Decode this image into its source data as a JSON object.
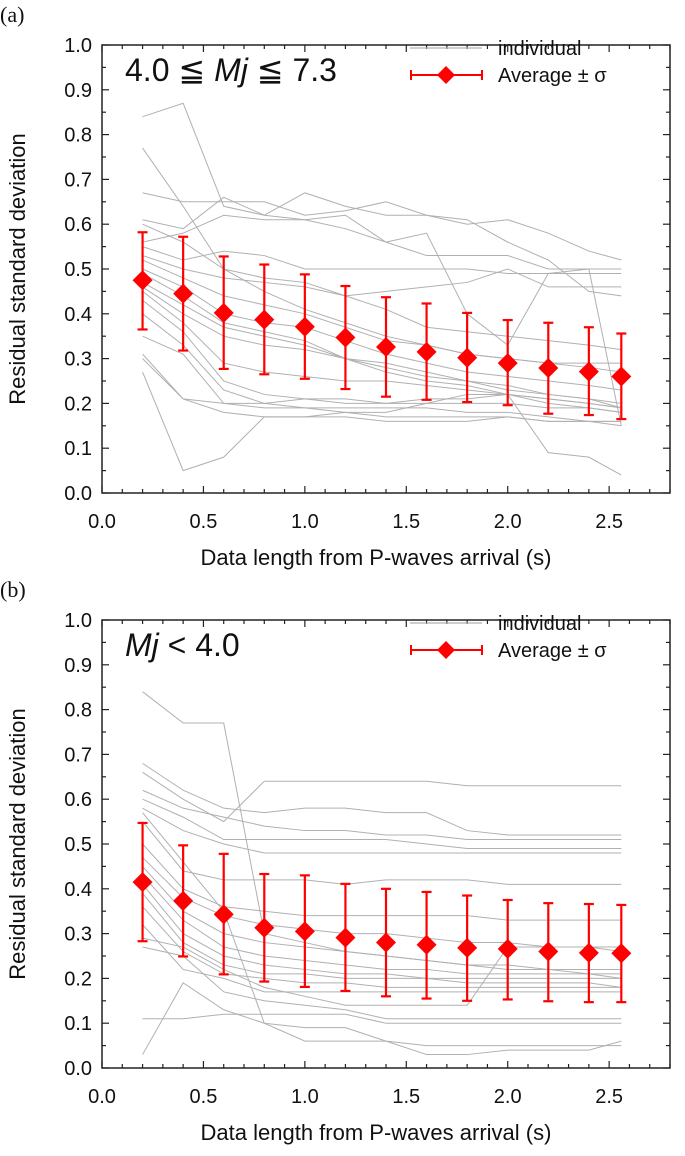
{
  "chart_data": [
    {
      "panel": "(a)",
      "type": "line",
      "annotation": "4.0 ≦ Mj ≦ 7.3",
      "annotation_parts": [
        "4.0 ≦ ",
        "Mj",
        " ≦ 7.3"
      ],
      "xlabel": "Data length from P-waves arrival (s)",
      "ylabel": "Residual standard deviation",
      "xlim": [
        0,
        2.8
      ],
      "ylim": [
        0,
        1.0
      ],
      "xticks": [
        "0.0",
        "0.5",
        "1.0",
        "1.5",
        "2.0",
        "2.5"
      ],
      "yticks": [
        "0.0",
        "0.1",
        "0.2",
        "0.3",
        "0.4",
        "0.5",
        "0.6",
        "0.7",
        "0.8",
        "0.9",
        "1.0"
      ],
      "legend": {
        "position": "top-right",
        "individual": "individual",
        "average": "Average ± σ"
      },
      "colors": {
        "individual": "#b0b0b0",
        "average": "#ff0000"
      },
      "x": [
        0.2,
        0.4,
        0.6,
        0.8,
        1.0,
        1.2,
        1.4,
        1.6,
        1.8,
        2.0,
        2.2,
        2.4,
        2.56
      ],
      "average": [
        0.475,
        0.445,
        0.402,
        0.387,
        0.371,
        0.347,
        0.326,
        0.315,
        0.302,
        0.29,
        0.279,
        0.271,
        0.26
      ],
      "sigma_upper": [
        0.582,
        0.572,
        0.528,
        0.51,
        0.488,
        0.462,
        0.437,
        0.423,
        0.402,
        0.386,
        0.38,
        0.37,
        0.356
      ],
      "sigma_lower": [
        0.365,
        0.318,
        0.277,
        0.265,
        0.255,
        0.232,
        0.215,
        0.208,
        0.203,
        0.196,
        0.177,
        0.174,
        0.165
      ],
      "individual": [
        [
          0.84,
          0.87,
          0.64,
          0.62,
          0.61,
          0.59,
          0.56,
          0.58,
          0.4,
          0.33,
          0.49,
          0.5,
          0.15
        ],
        [
          0.77,
          0.64,
          0.5,
          0.45,
          0.41,
          0.38,
          0.35,
          0.33,
          0.31,
          0.3,
          0.29,
          0.28,
          0.27
        ],
        [
          0.67,
          0.65,
          0.65,
          0.65,
          0.62,
          0.63,
          0.65,
          0.62,
          0.6,
          0.61,
          0.58,
          0.54,
          0.52
        ],
        [
          0.61,
          0.59,
          0.66,
          0.62,
          0.67,
          0.64,
          0.62,
          0.62,
          0.61,
          0.56,
          0.52,
          0.45,
          0.44
        ],
        [
          0.56,
          0.58,
          0.62,
          0.61,
          0.61,
          0.62,
          0.56,
          0.53,
          0.53,
          0.53,
          0.5,
          0.5,
          0.5
        ],
        [
          0.55,
          0.52,
          0.54,
          0.53,
          0.5,
          0.5,
          0.5,
          0.5,
          0.5,
          0.49,
          0.49,
          0.49,
          0.49
        ],
        [
          0.53,
          0.5,
          0.48,
          0.47,
          0.46,
          0.44,
          0.45,
          0.46,
          0.47,
          0.5,
          0.46,
          0.46,
          0.46
        ],
        [
          0.52,
          0.48,
          0.44,
          0.42,
          0.4,
          0.37,
          0.34,
          0.33,
          0.31,
          0.3,
          0.29,
          0.29,
          0.29
        ],
        [
          0.5,
          0.46,
          0.4,
          0.38,
          0.37,
          0.34,
          0.31,
          0.29,
          0.27,
          0.26,
          0.25,
          0.24,
          0.23
        ],
        [
          0.49,
          0.44,
          0.38,
          0.36,
          0.34,
          0.3,
          0.27,
          0.25,
          0.24,
          0.22,
          0.21,
          0.2,
          0.19
        ],
        [
          0.47,
          0.42,
          0.37,
          0.35,
          0.33,
          0.3,
          0.28,
          0.26,
          0.25,
          0.24,
          0.22,
          0.21,
          0.2
        ],
        [
          0.46,
          0.4,
          0.35,
          0.33,
          0.32,
          0.3,
          0.29,
          0.27,
          0.25,
          0.23,
          0.22,
          0.21,
          0.19
        ],
        [
          0.45,
          0.38,
          0.29,
          0.27,
          0.26,
          0.25,
          0.25,
          0.24,
          0.23,
          0.22,
          0.2,
          0.19,
          0.18
        ],
        [
          0.43,
          0.36,
          0.25,
          0.22,
          0.21,
          0.21,
          0.2,
          0.2,
          0.2,
          0.2,
          0.19,
          0.19,
          0.18
        ],
        [
          0.4,
          0.33,
          0.23,
          0.2,
          0.19,
          0.19,
          0.19,
          0.19,
          0.18,
          0.18,
          0.17,
          0.16,
          0.16
        ],
        [
          0.35,
          0.31,
          0.2,
          0.19,
          0.19,
          0.18,
          0.17,
          0.17,
          0.17,
          0.17,
          0.16,
          0.16,
          0.16
        ],
        [
          0.31,
          0.21,
          0.2,
          0.2,
          0.21,
          0.2,
          0.2,
          0.21,
          0.21,
          0.22,
          0.21,
          0.2,
          0.19
        ],
        [
          0.3,
          0.21,
          0.18,
          0.17,
          0.17,
          0.17,
          0.16,
          0.16,
          0.16,
          0.17,
          0.16,
          0.16,
          0.15
        ],
        [
          0.27,
          0.05,
          0.08,
          0.17,
          0.17,
          0.18,
          0.18,
          0.2,
          0.22,
          0.22,
          0.09,
          0.08,
          0.04
        ],
        [
          0.6,
          0.56,
          0.5,
          0.48,
          0.47,
          0.44,
          0.41,
          0.37,
          0.36,
          0.35,
          0.34,
          0.33,
          0.32
        ]
      ]
    },
    {
      "panel": "(b)",
      "type": "line",
      "annotation": "Mj < 4.0",
      "annotation_parts": [
        "",
        "Mj",
        " < 4.0"
      ],
      "xlabel": "Data length from P-waves arrival (s)",
      "ylabel": "Residual standard deviation",
      "xlim": [
        0,
        2.8
      ],
      "ylim": [
        0,
        1.0
      ],
      "xticks": [
        "0.0",
        "0.5",
        "1.0",
        "1.5",
        "2.0",
        "2.5"
      ],
      "yticks": [
        "0.0",
        "0.1",
        "0.2",
        "0.3",
        "0.4",
        "0.5",
        "0.6",
        "0.7",
        "0.8",
        "0.9",
        "1.0"
      ],
      "legend": {
        "position": "top-right",
        "individual": "individual",
        "average": "Average ± σ"
      },
      "colors": {
        "individual": "#b0b0b0",
        "average": "#ff0000"
      },
      "x": [
        0.2,
        0.4,
        0.6,
        0.8,
        1.0,
        1.2,
        1.4,
        1.6,
        1.8,
        2.0,
        2.2,
        2.4,
        2.56
      ],
      "average": [
        0.415,
        0.373,
        0.343,
        0.313,
        0.305,
        0.291,
        0.28,
        0.275,
        0.268,
        0.266,
        0.26,
        0.257,
        0.256
      ],
      "sigma_upper": [
        0.547,
        0.497,
        0.478,
        0.433,
        0.43,
        0.411,
        0.4,
        0.393,
        0.385,
        0.375,
        0.368,
        0.366,
        0.364
      ],
      "sigma_lower": [
        0.283,
        0.249,
        0.209,
        0.193,
        0.181,
        0.172,
        0.16,
        0.155,
        0.15,
        0.153,
        0.149,
        0.147,
        0.147
      ],
      "individual": [
        [
          0.84,
          0.77,
          0.77,
          0.3,
          0.28,
          0.26,
          0.25,
          0.24,
          0.23,
          0.22,
          0.22,
          0.21,
          0.21
        ],
        [
          0.68,
          0.62,
          0.58,
          0.57,
          0.58,
          0.58,
          0.57,
          0.57,
          0.53,
          0.52,
          0.52,
          0.52,
          0.52
        ],
        [
          0.66,
          0.6,
          0.55,
          0.64,
          0.64,
          0.64,
          0.64,
          0.64,
          0.63,
          0.63,
          0.63,
          0.63,
          0.63
        ],
        [
          0.62,
          0.58,
          0.56,
          0.54,
          0.53,
          0.53,
          0.52,
          0.52,
          0.51,
          0.51,
          0.51,
          0.51,
          0.51
        ],
        [
          0.6,
          0.56,
          0.51,
          0.51,
          0.51,
          0.51,
          0.51,
          0.5,
          0.49,
          0.49,
          0.49,
          0.49,
          0.49
        ],
        [
          0.58,
          0.53,
          0.5,
          0.48,
          0.48,
          0.48,
          0.48,
          0.48,
          0.48,
          0.48,
          0.48,
          0.48,
          0.48
        ],
        [
          0.55,
          0.44,
          0.42,
          0.42,
          0.42,
          0.41,
          0.42,
          0.42,
          0.42,
          0.41,
          0.41,
          0.41,
          0.41
        ],
        [
          0.5,
          0.4,
          0.36,
          0.35,
          0.34,
          0.34,
          0.34,
          0.34,
          0.34,
          0.33,
          0.33,
          0.33,
          0.33
        ],
        [
          0.47,
          0.38,
          0.34,
          0.32,
          0.31,
          0.3,
          0.3,
          0.29,
          0.28,
          0.28,
          0.27,
          0.27,
          0.27
        ],
        [
          0.45,
          0.35,
          0.3,
          0.28,
          0.27,
          0.26,
          0.25,
          0.24,
          0.23,
          0.23,
          0.22,
          0.22,
          0.22
        ],
        [
          0.43,
          0.33,
          0.27,
          0.25,
          0.24,
          0.23,
          0.22,
          0.22,
          0.21,
          0.21,
          0.21,
          0.21,
          0.2
        ],
        [
          0.41,
          0.3,
          0.25,
          0.23,
          0.22,
          0.21,
          0.21,
          0.2,
          0.2,
          0.2,
          0.2,
          0.2,
          0.2
        ],
        [
          0.39,
          0.28,
          0.23,
          0.21,
          0.21,
          0.2,
          0.2,
          0.2,
          0.19,
          0.19,
          0.19,
          0.19,
          0.18
        ],
        [
          0.36,
          0.26,
          0.21,
          0.2,
          0.19,
          0.19,
          0.18,
          0.18,
          0.18,
          0.18,
          0.18,
          0.18,
          0.18
        ],
        [
          0.32,
          0.22,
          0.2,
          0.17,
          0.17,
          0.17,
          0.17,
          0.17,
          0.17,
          0.17,
          0.17,
          0.17,
          0.17
        ],
        [
          0.29,
          0.27,
          0.22,
          0.18,
          0.16,
          0.14,
          0.14,
          0.14,
          0.14,
          0.27,
          0.27,
          0.27,
          0.26
        ],
        [
          0.27,
          0.25,
          0.17,
          0.15,
          0.14,
          0.13,
          0.11,
          0.11,
          0.11,
          0.11,
          0.11,
          0.11,
          0.11
        ],
        [
          0.11,
          0.11,
          0.12,
          0.12,
          0.12,
          0.12,
          0.1,
          0.1,
          0.1,
          0.1,
          0.1,
          0.1,
          0.1
        ],
        [
          0.03,
          0.19,
          0.13,
          0.1,
          0.09,
          0.09,
          0.06,
          0.03,
          0.03,
          0.04,
          0.04,
          0.04,
          0.06
        ],
        [
          0.57,
          0.46,
          0.35,
          0.1,
          0.06,
          0.06,
          0.06,
          0.05,
          0.05,
          0.05,
          0.05,
          0.05,
          0.05
        ]
      ]
    }
  ]
}
